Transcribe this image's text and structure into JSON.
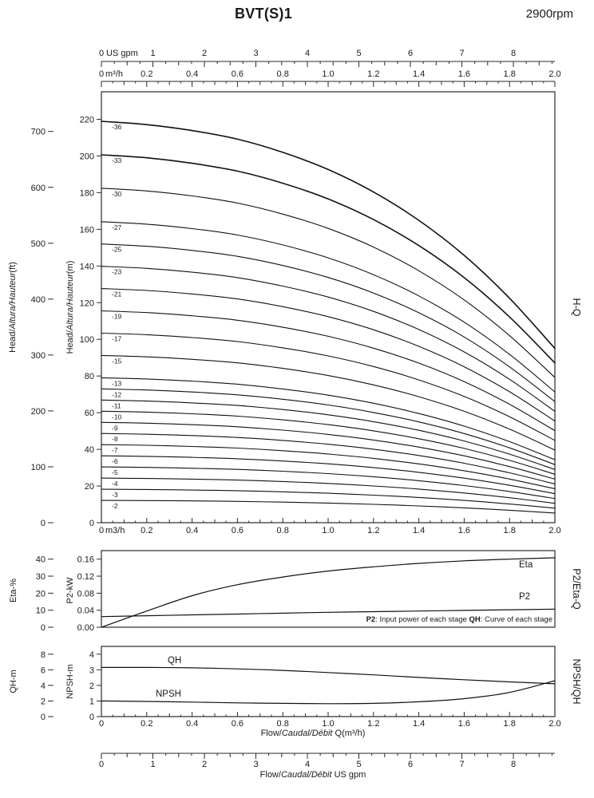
{
  "header": {
    "title": "BVT(S)1",
    "rpm": "2900rpm"
  },
  "top_axes": {
    "gpm": {
      "unit": "US gpm",
      "tick_values": [
        0,
        1,
        2,
        3,
        4,
        5,
        6,
        7,
        8
      ],
      "tick_labels": [
        "0",
        "1",
        "2",
        "3",
        "4",
        "5",
        "6",
        "7",
        "8"
      ]
    },
    "m3h": {
      "unit": "m³/h",
      "tick_values": [
        0,
        0.2,
        0.4,
        0.6,
        0.8,
        1,
        1.2,
        1.4,
        1.6,
        1.8,
        2
      ],
      "tick_labels": [
        "0",
        "0.2",
        "0.4",
        "0.6",
        "0.8",
        "1.0",
        "1.2",
        "1.4",
        "1.6",
        "1.8",
        "2.0"
      ]
    }
  },
  "axis_titles": {
    "head_ft": {
      "pre": "Head/",
      "it": "Altura/Hauteur",
      "suf": "(ft)"
    },
    "head_m": {
      "pre": "Head/",
      "it": "Altura/Hauteur",
      "suf": "(m)"
    },
    "eta": "Eta-%",
    "p2": "P2-kW",
    "qh": "QH-m",
    "npsh": "NPSH-m"
  },
  "flow_titles": {
    "m3h": {
      "pre": "Flow/",
      "it": "Caudal/Débit",
      "suf": " Q(m³/h)"
    },
    "gpm": {
      "pre": "Flow/",
      "it": "Caudal/Débit",
      "suf": " US gpm"
    }
  },
  "note": {
    "b1": "P2",
    "t1": ": Input power of each stage ",
    "b2": "QH",
    "t2": ": Curve of each stage"
  },
  "bottom_gpm_axis": {
    "tick_values": [
      0,
      1,
      2,
      3,
      4,
      5,
      6,
      7,
      8
    ],
    "tick_labels": [
      "0",
      "1",
      "2",
      "3",
      "4",
      "5",
      "6",
      "7",
      "8"
    ]
  },
  "chart_data": [
    {
      "id": "hq",
      "type": "line",
      "right_label": "H-Q",
      "x_axis": {
        "unit_at_zero": "m3/h",
        "range_m3h": [
          0,
          2
        ],
        "tick_values": [
          0,
          0.2,
          0.4,
          0.6,
          0.8,
          1,
          1.2,
          1.4,
          1.6,
          1.8,
          2
        ],
        "tick_labels": [
          "0",
          "0.2",
          "0.4",
          "0.6",
          "0.8",
          "1.0",
          "1.2",
          "1.4",
          "1.6",
          "1.8",
          "2.0"
        ]
      },
      "y_m": {
        "title": "Head/Altura/Hauteur(m)",
        "range": [
          0,
          235
        ],
        "tick_values": [
          0,
          20,
          40,
          60,
          80,
          100,
          120,
          140,
          160,
          180,
          200,
          220
        ]
      },
      "y_ft": {
        "title": "Head/Altura/Hauteur(ft)",
        "range": [
          0,
          771
        ],
        "tick_values": [
          0,
          100,
          200,
          300,
          400,
          500,
          600,
          700
        ]
      },
      "stage_label_prefix": "-",
      "stages": [
        2,
        3,
        4,
        5,
        6,
        7,
        8,
        9,
        10,
        11,
        12,
        13,
        15,
        17,
        19,
        21,
        23,
        25,
        27,
        30,
        33,
        36
      ],
      "q_samples_m3h": [
        0,
        0.2,
        0.4,
        0.6,
        0.8,
        1,
        1.2,
        1.4,
        1.6,
        1.8,
        2
      ],
      "head_per_stage_m": [
        6.08,
        6.03,
        5.94,
        5.81,
        5.61,
        5.35,
        5.01,
        4.58,
        4.05,
        3.4,
        2.64
      ]
    },
    {
      "id": "p2eta",
      "type": "line",
      "right_label": "P2/Eta-Q",
      "y_eta": {
        "title": "Eta-%",
        "range": [
          0,
          45
        ],
        "tick_values": [
          40,
          30,
          20,
          10,
          0
        ],
        "tick_labels": [
          "40",
          "30",
          "20",
          "10",
          "0"
        ]
      },
      "y_p2": {
        "title": "P2-kW",
        "range": [
          0,
          0.18
        ],
        "tick_values": [
          0.16,
          0.12,
          0.08,
          0.04,
          0
        ],
        "tick_labels": [
          "0.16",
          "0.12",
          "0.08",
          "0.04",
          "0.00"
        ]
      },
      "q_samples_m3h": [
        0,
        0.2,
        0.4,
        0.6,
        0.8,
        1,
        1.2,
        1.4,
        1.6,
        1.8,
        2
      ],
      "series": [
        {
          "name": "Eta",
          "axis": "eta",
          "values": [
            0,
            9.5,
            18.5,
            25,
            29.5,
            33,
            35.5,
            37.5,
            39,
            40,
            40.8
          ]
        },
        {
          "name": "P2",
          "axis": "p2",
          "values": [
            0.025,
            0.027,
            0.029,
            0.031,
            0.033,
            0.035,
            0.0365,
            0.038,
            0.0395,
            0.041,
            0.0425
          ]
        }
      ]
    },
    {
      "id": "npshqh",
      "type": "line",
      "right_label": "NPSH/QH",
      "x_axis": {
        "range_m3h": [
          0,
          2
        ],
        "tick_values": [
          0,
          0.2,
          0.4,
          0.6,
          0.8,
          1,
          1.2,
          1.4,
          1.6,
          1.8,
          2
        ],
        "tick_labels": [
          "0",
          "0.2",
          "0.4",
          "0.6",
          "0.8",
          "1.0",
          "1.2",
          "1.4",
          "1.6",
          "1.8",
          "2.0"
        ]
      },
      "y_qh": {
        "title": "QH-m",
        "range": [
          0,
          9
        ],
        "tick_values": [
          8,
          6,
          4,
          2,
          0
        ],
        "tick_labels": [
          "8",
          "6",
          "4",
          "2",
          "0"
        ]
      },
      "y_npsh": {
        "title": "NPSH-m",
        "range": [
          0,
          4.5
        ],
        "tick_values": [
          4,
          3,
          2,
          1,
          0
        ],
        "tick_labels": [
          "4",
          "3",
          "2",
          "1",
          "0"
        ]
      },
      "q_samples_m3h": [
        0,
        0.2,
        0.4,
        0.6,
        0.8,
        1,
        1.2,
        1.4,
        1.6,
        1.8,
        2
      ],
      "series": [
        {
          "name": "QH",
          "axis": "qh",
          "values": [
            6.3,
            6.3,
            6.25,
            6.12,
            5.92,
            5.65,
            5.35,
            5.02,
            4.72,
            4.45,
            4.2
          ]
        },
        {
          "name": "NPSH",
          "axis": "npsh",
          "values": [
            1,
            0.97,
            0.93,
            0.88,
            0.85,
            0.83,
            0.85,
            0.95,
            1.15,
            1.55,
            2.3
          ]
        }
      ]
    }
  ]
}
